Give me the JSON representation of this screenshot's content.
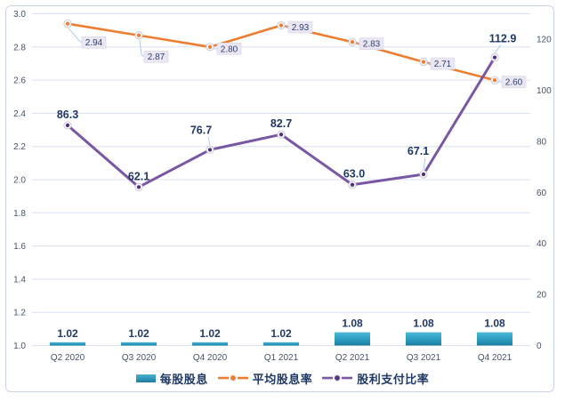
{
  "chart_data": {
    "type": "combo-bar-line",
    "title": "",
    "categories": [
      "Q2 2020",
      "Q3 2020",
      "Q4 2020",
      "Q1 2021",
      "Q2 2021",
      "Q3 2021",
      "Q4 2021"
    ],
    "series": [
      {
        "name": "每股股息",
        "type": "bar",
        "axis": "left",
        "values": [
          1.02,
          1.02,
          1.02,
          1.02,
          1.08,
          1.08,
          1.08
        ],
        "labels": [
          "1.02",
          "1.02",
          "1.02",
          "1.02",
          "1.08",
          "1.08",
          "1.08"
        ]
      },
      {
        "name": "平均股息率",
        "type": "line",
        "axis": "left",
        "values": [
          2.94,
          2.87,
          2.8,
          2.93,
          2.83,
          2.71,
          2.6
        ],
        "labels": [
          "2.94",
          "2.87",
          "2.80",
          "2.93",
          "2.83",
          "2.71",
          "2.60"
        ]
      },
      {
        "name": "股利支付比率",
        "type": "line",
        "axis": "right",
        "values": [
          86.3,
          62.1,
          76.7,
          82.7,
          63.0,
          67.1,
          112.9
        ],
        "labels": [
          "86.3",
          "62.1",
          "76.7",
          "82.7",
          "63.0",
          "67.1",
          "112.9"
        ]
      }
    ],
    "left_axis": {
      "min": 1.0,
      "max": 3.0,
      "step": 0.2,
      "ticks": [
        "1.0",
        "1.2",
        "1.4",
        "1.6",
        "1.8",
        "2.0",
        "2.2",
        "2.4",
        "2.6",
        "2.8",
        "3.0"
      ]
    },
    "right_axis": {
      "min": 0,
      "max": 130,
      "step": 20,
      "ticks": [
        "0",
        "20",
        "40",
        "60",
        "80",
        "100",
        "120"
      ]
    },
    "grid": true,
    "legend_position": "bottom-center",
    "colors": {
      "bar_top": "#55BCDA",
      "bar_mid": "#2B9DC1",
      "bar_bottom": "#1D7C9F",
      "avg_yield_line": "#ED7D31",
      "payout_line": "#7A57A5",
      "payout_marker_center": "#4E2D7E",
      "marker_ring_fill": "#F4F2F7",
      "marker_ring_stroke": "#C6C6C6",
      "value_label": "#1F3864",
      "axis_label": "#44546A",
      "gridline": "#D9E1F0",
      "label_box_bg": "#EAE7F3",
      "label_box_border": "#D9D4E8",
      "label_box_text": "#2F3F6E",
      "leader_line": "#A9C7E9",
      "frame_border": "#C9D2E6"
    }
  }
}
